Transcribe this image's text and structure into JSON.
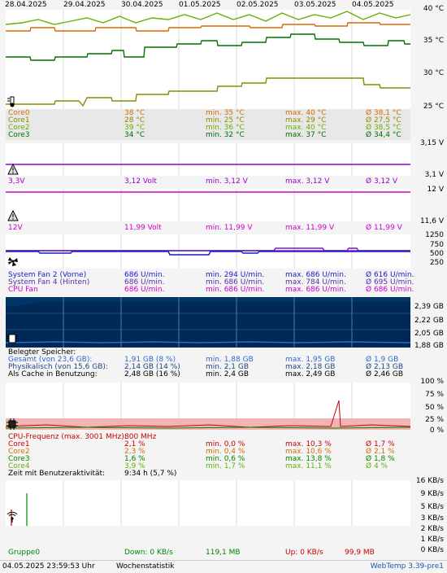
{
  "dates": [
    "28.04.2025",
    "29.04.2025",
    "30.04.2025",
    "01.05.2025",
    "02.05.2025",
    "03.05.2025",
    "04.05.2025"
  ],
  "temp": {
    "axis": [
      "40 °C",
      "35 °C",
      "30 °C",
      "25 °C"
    ],
    "rows": [
      {
        "name": "Core0",
        "cur": "38 °C",
        "min": "min. 35 °C",
        "max": "max. 40 °C",
        "avg": "Ø 38,1 °C",
        "color": "#d86a00"
      },
      {
        "name": "Core1",
        "cur": "28 °C",
        "min": "min. 25 °C",
        "max": "max. 29 °C",
        "avg": "Ø 27,5 °C",
        "color": "#8c8c00"
      },
      {
        "name": "Core2",
        "cur": "39 °C",
        "min": "min. 36 °C",
        "max": "max. 40 °C",
        "avg": "Ø 38,5 °C",
        "color": "#66b000"
      },
      {
        "name": "Core3",
        "cur": "34 °C",
        "min": "min. 32 °C",
        "max": "max. 37 °C",
        "avg": "Ø 34,4 °C",
        "color": "#007000"
      }
    ]
  },
  "v33": {
    "axis": [
      "3,15 V",
      "3,1 V"
    ],
    "row": {
      "name": "3,3V",
      "cur": "3,12 Volt",
      "min": "min. 3,12 V",
      "max": "max. 3,12 V",
      "avg": "Ø 3,12 V",
      "color": "#9900cc"
    }
  },
  "v12": {
    "axis": [
      "12 V",
      "11,6 V"
    ],
    "row": {
      "name": "12V",
      "cur": "11,99 Volt",
      "min": "min. 11,99 V",
      "max": "max. 11,99 V",
      "avg": "Ø 11,99 V",
      "color": "#cc00cc"
    }
  },
  "fan": {
    "axis": [
      "1250",
      "750",
      "500",
      "250"
    ],
    "rows": [
      {
        "name": "System Fan 2 (Vorne)",
        "cur": "686 U/min.",
        "min": "min. 294 U/min.",
        "max": "max. 686 U/min.",
        "avg": "Ø 616 U/min.",
        "color": "#1a1acc"
      },
      {
        "name": "System Fan 4 (Hinten)",
        "cur": "686 U/min.",
        "min": "min. 686 U/min.",
        "max": "max. 784 U/min.",
        "avg": "Ø 695 U/min.",
        "color": "#5a2aaa"
      },
      {
        "name": "CPU Fan",
        "cur": "686 U/min.",
        "min": "min. 686 U/min.",
        "max": "max. 686 U/min.",
        "avg": "Ø 686 U/min.",
        "color": "#cc00cc"
      }
    ]
  },
  "mem": {
    "axis": [
      "2,39 GB",
      "2,22 GB",
      "2,05 GB",
      "1,88 GB"
    ],
    "title": "Belegter Speicher:",
    "rows": [
      {
        "name": "Gesamt (von 23,6 GB):",
        "cur": "1,91 GB (8 %)",
        "min": "min. 1,88 GB",
        "max": "max. 1,95 GB",
        "avg": "Ø 1,9 GB",
        "color": "#3366cc"
      },
      {
        "name": "Physikalisch (von 15,6 GB):",
        "cur": "2,14 GB (14 %)",
        "min": "min. 2,1 GB",
        "max": "max. 2,18 GB",
        "avg": "Ø 2,13 GB",
        "color": "#224488"
      },
      {
        "name": "Als Cache in Benutzung:",
        "cur": "2,48 GB (16 %)",
        "min": "min. 2,4 GB",
        "max": "max. 2,49 GB",
        "avg": "Ø 2,46 GB",
        "color": "#000000"
      }
    ]
  },
  "cpu": {
    "axis": [
      "100 %",
      "75 %",
      "50 %",
      "25 %",
      "0 %"
    ],
    "title": "CPU-Frequenz (max. 3001 MHz):",
    "title_val": "800 MHz",
    "rows": [
      {
        "name": "Core1",
        "cur": "2,1 %",
        "min": "min. 0,0 %",
        "max": "max. 10,3 %",
        "avg": "Ø 1,7 %",
        "color": "#cc0000"
      },
      {
        "name": "Core2",
        "cur": "2,3 %",
        "min": "min. 0,4 %",
        "max": "max. 10,6 %",
        "avg": "Ø 2,1 %",
        "color": "#d86a00"
      },
      {
        "name": "Core3",
        "cur": "1,6 %",
        "min": "min. 0,6 %",
        "max": "max. 13,8 %",
        "avg": "Ø 1,8 %",
        "color": "#008800"
      },
      {
        "name": "Core4",
        "cur": "3,9 %",
        "min": "min. 1,7 %",
        "max": "max. 11,1 %",
        "avg": "Ø 4 %",
        "color": "#66b000"
      }
    ],
    "activity_label": "Zeit mit Benutzeraktivität:",
    "activity_val": "9:34 h (5,7 %)"
  },
  "net": {
    "axis": [
      "16 KB/s",
      "9 KB/s",
      "5 KB/s",
      "3 KB/s",
      "2 KB/s",
      "1 KB/s",
      "0 KB/s"
    ],
    "group": "Gruppe0",
    "down": "Down: 0 KB/s",
    "down_total": "119,1 MB",
    "up": "Up: 0 KB/s",
    "up_total": "99,9 MB"
  },
  "footer": {
    "timestamp": "04.05.2025 23:59:53 Uhr",
    "mode": "Wochenstatistik",
    "app": "WebTemp 3.39-pre1"
  },
  "colors": {
    "accent": "#003366",
    "cpu_band": "#f0b4b4",
    "net_red": "#cc0000",
    "net_green": "#008800"
  }
}
